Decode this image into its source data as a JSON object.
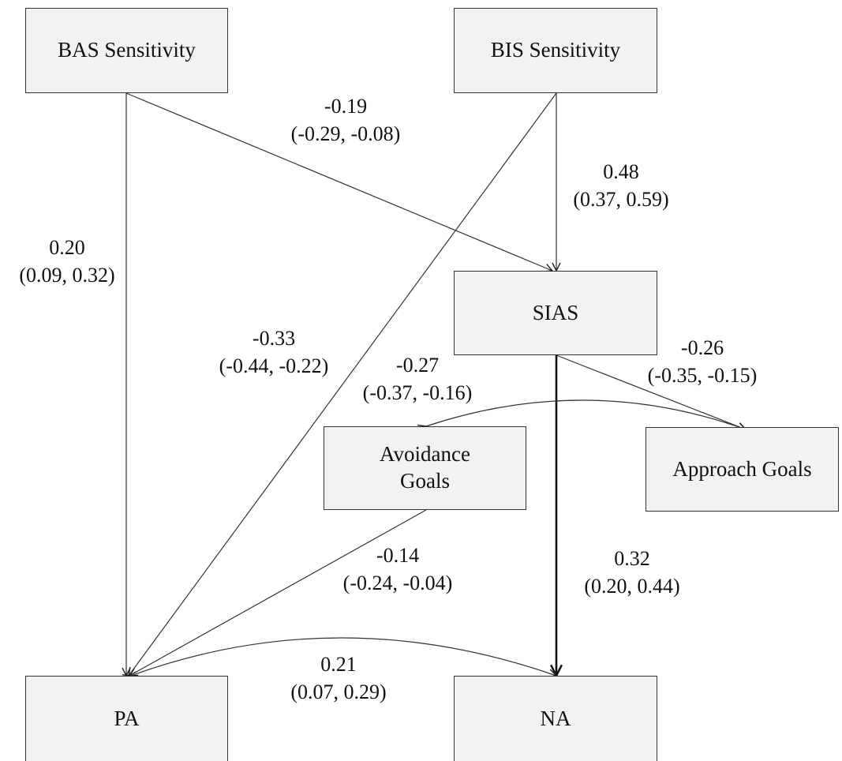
{
  "nodes": {
    "bas": "BAS Sensitivity",
    "bis": "BIS Sensitivity",
    "sias": "SIAS",
    "avoidance": "Avoidance\nGoals",
    "approach": "Approach Goals",
    "pa": "PA",
    "na": "NA"
  },
  "paths": {
    "bas_pa": {
      "coef": "0.20",
      "ci": "(0.09, 0.32)"
    },
    "bas_sias": {
      "coef": "-0.19",
      "ci": "(-0.29, -0.08)"
    },
    "bis_sias": {
      "coef": "0.48",
      "ci": "(0.37, 0.59)"
    },
    "bis_pa": {
      "coef": "-0.33",
      "ci": "(-0.44, -0.22)"
    },
    "sias_avoidance": {
      "coef": "-0.27",
      "ci": "(-0.37, -0.16)"
    },
    "sias_approach": {
      "coef": "-0.26",
      "ci": "(-0.35, -0.15)"
    },
    "sias_na": {
      "coef": "0.32",
      "ci": "(0.20, 0.44)"
    },
    "avoidance_pa": {
      "coef": "-0.14",
      "ci": "(-0.24, -0.04)"
    },
    "pa_na": {
      "coef": "0.21",
      "ci": "(0.07, 0.29)"
    }
  },
  "colors": {
    "box_fill": "#f2f2f2",
    "line": "#333333"
  }
}
